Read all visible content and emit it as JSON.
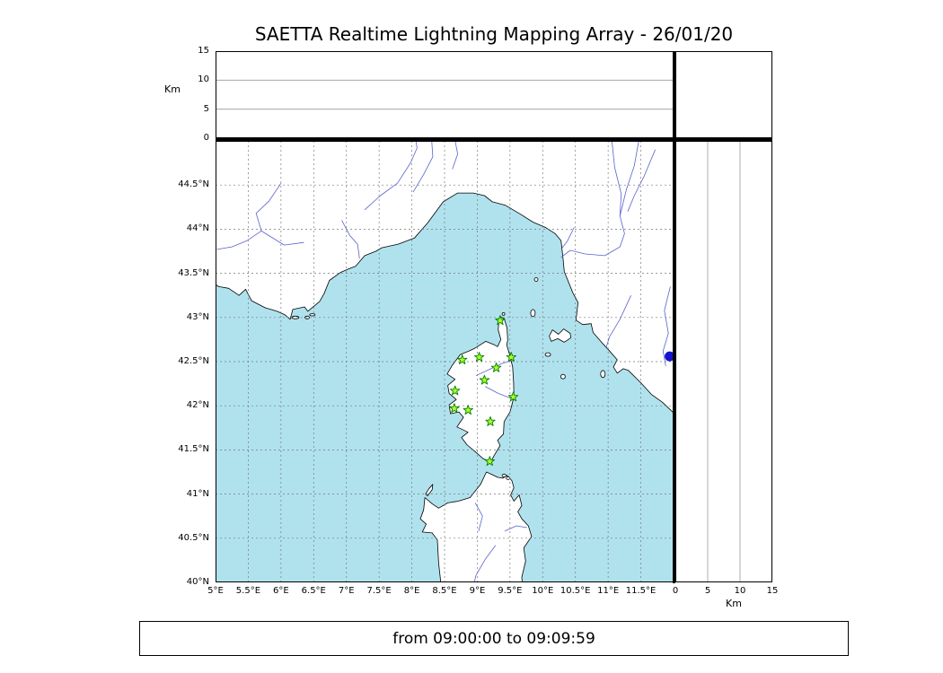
{
  "title": "SAETTA Realtime Lightning Mapping Array - 26/01/20",
  "footer": "from 09:00:00 to 09:09:59",
  "colors": {
    "sea": "#b0e2ee",
    "land": "#ffffff",
    "coast": "#000000",
    "river": "#5a62cf",
    "lake": "#1414cc",
    "grid": "#777777",
    "panel_line": "#999999",
    "station_fill": "#adff2f",
    "station_edge": "#008000"
  },
  "chart_data": {
    "type": "scatter",
    "title": "SAETTA Realtime Lightning Mapping Array - 26/01/20",
    "time_window": {
      "from": "09:00:00",
      "to": "09:09:59"
    },
    "map_panel": {
      "lon_range": [
        5,
        12
      ],
      "lat_range": [
        40,
        45
      ],
      "grid": true,
      "grid_step_deg": 0.5,
      "x_ticks": [
        {
          "v": 5,
          "label": "5°E"
        },
        {
          "v": 5.5,
          "label": "5.5°E"
        },
        {
          "v": 6,
          "label": "6°E"
        },
        {
          "v": 6.5,
          "label": "6.5°E"
        },
        {
          "v": 7,
          "label": "7°E"
        },
        {
          "v": 7.5,
          "label": "7.5°E"
        },
        {
          "v": 8,
          "label": "8°E"
        },
        {
          "v": 8.5,
          "label": "8.5°E"
        },
        {
          "v": 9,
          "label": "9°E"
        },
        {
          "v": 9.5,
          "label": "9.5°E"
        },
        {
          "v": 10,
          "label": "10°E"
        },
        {
          "v": 10.5,
          "label": "10.5°E"
        },
        {
          "v": 11,
          "label": "11°E"
        },
        {
          "v": 11.5,
          "label": "11.5°E"
        }
      ],
      "y_ticks": [
        {
          "v": 40,
          "label": "40°N"
        },
        {
          "v": 40.5,
          "label": "40.5°N"
        },
        {
          "v": 41,
          "label": "41°N"
        },
        {
          "v": 41.5,
          "label": "41.5°N"
        },
        {
          "v": 42,
          "label": "42°N"
        },
        {
          "v": 42.5,
          "label": "42.5°N"
        },
        {
          "v": 43,
          "label": "43°N"
        },
        {
          "v": 43.5,
          "label": "43.5°N"
        },
        {
          "v": 44,
          "label": "44°N"
        },
        {
          "v": 44.5,
          "label": "44.5°N"
        }
      ],
      "stations": [
        {
          "lon": 9.35,
          "lat": 42.965
        },
        {
          "lon": 8.77,
          "lat": 42.52
        },
        {
          "lon": 9.03,
          "lat": 42.55
        },
        {
          "lon": 9.52,
          "lat": 42.55
        },
        {
          "lon": 9.29,
          "lat": 42.43
        },
        {
          "lon": 9.11,
          "lat": 42.29
        },
        {
          "lon": 8.66,
          "lat": 42.17
        },
        {
          "lon": 9.55,
          "lat": 42.1
        },
        {
          "lon": 8.65,
          "lat": 41.97
        },
        {
          "lon": 8.86,
          "lat": 41.95
        },
        {
          "lon": 9.2,
          "lat": 41.82
        },
        {
          "lon": 9.19,
          "lat": 41.37
        }
      ],
      "lightning_points": [],
      "lake_marker": {
        "lon": 11.94,
        "lat": 42.56
      }
    },
    "top_panel": {
      "axis_label": "Km",
      "ticks": [
        {
          "v": 0,
          "label": "0"
        },
        {
          "v": 5,
          "label": "5"
        },
        {
          "v": 10,
          "label": "10"
        },
        {
          "v": 15,
          "label": "15"
        }
      ],
      "range": [
        0,
        15
      ],
      "gridlines_km": [
        5,
        10
      ],
      "points": []
    },
    "right_panel": {
      "axis_label": "Km",
      "ticks": [
        {
          "v": 0,
          "label": "0"
        },
        {
          "v": 5,
          "label": "5"
        },
        {
          "v": 10,
          "label": "10"
        },
        {
          "v": 15,
          "label": "15"
        }
      ],
      "range": [
        0,
        15
      ],
      "gridlines_km": [
        5,
        10
      ],
      "points": []
    }
  }
}
